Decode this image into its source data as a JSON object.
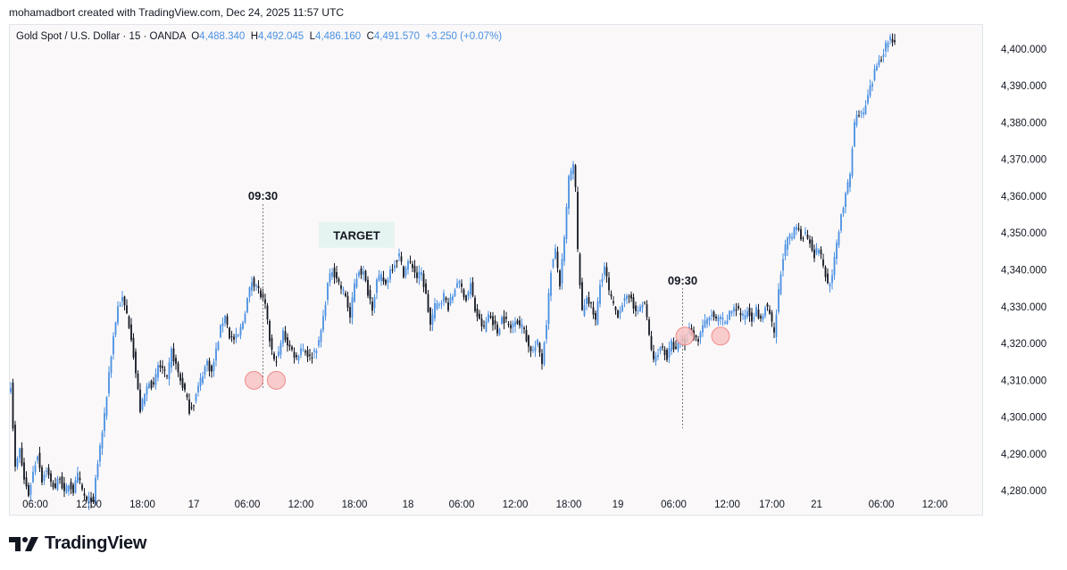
{
  "header": {
    "credit": "mohamadbort created with TradingView.com, Dec 24, 2025 11:57 UTC"
  },
  "legend": {
    "symbol": "Gold Spot / U.S. Dollar · 15 · OANDA",
    "o_label": "O",
    "o_value": "4,488.340",
    "h_label": "H",
    "h_value": "4,492.045",
    "l_label": "L",
    "l_value": "4,486.160",
    "c_label": "C",
    "c_value": "4,491.570",
    "change": "+3.250 (+0.07%)"
  },
  "footer": {
    "brand": "TradingView"
  },
  "colors": {
    "up": "#4a90e2",
    "down": "#131722",
    "marker_fill": "#f7c4c4",
    "marker_stroke": "#ef8a8a",
    "target_bg": "#e6f4f1"
  },
  "chart_data": {
    "type": "candlestick",
    "ylim": [
      4273.5,
      4406.5
    ],
    "y_ticks": [
      4280,
      4290,
      4300,
      4310,
      4320,
      4330,
      4340,
      4350,
      4360,
      4370,
      4380,
      4390,
      4400
    ],
    "y_tick_labels": [
      "4,280.000",
      "4,290.000",
      "4,300.000",
      "4,310.000",
      "4,320.000",
      "4,330.000",
      "4,340.000",
      "4,350.000",
      "4,360.000",
      "4,370.000",
      "4,380.000",
      "4,390.000",
      "4,400.000"
    ],
    "x_ticks": [
      {
        "label": "06:00",
        "bar": 11
      },
      {
        "label": "12:00",
        "bar": 35
      },
      {
        "label": "18:00",
        "bar": 59
      },
      {
        "label": "17",
        "bar": 82
      },
      {
        "label": "06:00",
        "bar": 106
      },
      {
        "label": "12:00",
        "bar": 130
      },
      {
        "label": "18:00",
        "bar": 154
      },
      {
        "label": "18",
        "bar": 178
      },
      {
        "label": "06:00",
        "bar": 202
      },
      {
        "label": "12:00",
        "bar": 226
      },
      {
        "label": "18:00",
        "bar": 250
      },
      {
        "label": "19",
        "bar": 272
      },
      {
        "label": "06:00",
        "bar": 297
      },
      {
        "label": "12:00",
        "bar": 321
      },
      {
        "label": "17:00",
        "bar": 341
      },
      {
        "label": "21",
        "bar": 361
      },
      {
        "label": "06:00",
        "bar": 390
      },
      {
        "label": "12:00",
        "bar": 414
      }
    ],
    "anchors": [
      [
        0,
        4309
      ],
      [
        2,
        4286
      ],
      [
        4,
        4291
      ],
      [
        6,
        4283
      ],
      [
        8,
        4279
      ],
      [
        10,
        4285
      ],
      [
        12,
        4290
      ],
      [
        14,
        4283
      ],
      [
        16,
        4286
      ],
      [
        18,
        4282
      ],
      [
        20,
        4281
      ],
      [
        22,
        4284
      ],
      [
        24,
        4279
      ],
      [
        26,
        4282
      ],
      [
        28,
        4280
      ],
      [
        30,
        4284
      ],
      [
        32,
        4280
      ],
      [
        34,
        4277
      ],
      [
        36,
        4278
      ],
      [
        37,
        4276
      ],
      [
        38,
        4283
      ],
      [
        40,
        4292
      ],
      [
        42,
        4300
      ],
      [
        44,
        4312
      ],
      [
        46,
        4322
      ],
      [
        48,
        4330
      ],
      [
        50,
        4332
      ],
      [
        52,
        4328
      ],
      [
        54,
        4322
      ],
      [
        56,
        4312
      ],
      [
        58,
        4302
      ],
      [
        60,
        4306
      ],
      [
        62,
        4310
      ],
      [
        64,
        4308
      ],
      [
        66,
        4314
      ],
      [
        68,
        4313
      ],
      [
        70,
        4310
      ],
      [
        72,
        4318
      ],
      [
        74,
        4314
      ],
      [
        76,
        4310
      ],
      [
        78,
        4307
      ],
      [
        80,
        4302
      ],
      [
        82,
        4304
      ],
      [
        84,
        4308
      ],
      [
        86,
        4312
      ],
      [
        88,
        4315
      ],
      [
        90,
        4312
      ],
      [
        92,
        4318
      ],
      [
        94,
        4324
      ],
      [
        96,
        4328
      ],
      [
        98,
        4322
      ],
      [
        100,
        4321
      ],
      [
        102,
        4322
      ],
      [
        104,
        4326
      ],
      [
        106,
        4332
      ],
      [
        108,
        4337
      ],
      [
        110,
        4336
      ],
      [
        112,
        4333
      ],
      [
        114,
        4330
      ],
      [
        116,
        4321
      ],
      [
        118,
        4315
      ],
      [
        120,
        4317
      ],
      [
        122,
        4323
      ],
      [
        124,
        4320
      ],
      [
        126,
        4318
      ],
      [
        128,
        4316
      ],
      [
        130,
        4319
      ],
      [
        132,
        4318
      ],
      [
        134,
        4316
      ],
      [
        136,
        4318
      ],
      [
        138,
        4320
      ],
      [
        140,
        4327
      ],
      [
        142,
        4336
      ],
      [
        144,
        4340
      ],
      [
        146,
        4338
      ],
      [
        148,
        4335
      ],
      [
        150,
        4333
      ],
      [
        152,
        4327
      ],
      [
        154,
        4336
      ],
      [
        156,
        4340
      ],
      [
        158,
        4339
      ],
      [
        160,
        4334
      ],
      [
        162,
        4330
      ],
      [
        164,
        4337
      ],
      [
        166,
        4338
      ],
      [
        168,
        4336
      ],
      [
        170,
        4340
      ],
      [
        172,
        4342
      ],
      [
        174,
        4344
      ],
      [
        176,
        4339
      ],
      [
        178,
        4342
      ],
      [
        180,
        4341
      ],
      [
        182,
        4338
      ],
      [
        184,
        4339
      ],
      [
        186,
        4333
      ],
      [
        188,
        4325
      ],
      [
        190,
        4330
      ],
      [
        192,
        4331
      ],
      [
        194,
        4333
      ],
      [
        196,
        4330
      ],
      [
        198,
        4333
      ],
      [
        200,
        4337
      ],
      [
        202,
        4335
      ],
      [
        204,
        4332
      ],
      [
        206,
        4336
      ],
      [
        208,
        4329
      ],
      [
        210,
        4326
      ],
      [
        212,
        4324
      ],
      [
        214,
        4328
      ],
      [
        216,
        4326
      ],
      [
        218,
        4323
      ],
      [
        220,
        4327
      ],
      [
        222,
        4326
      ],
      [
        224,
        4324
      ],
      [
        226,
        4327
      ],
      [
        228,
        4325
      ],
      [
        230,
        4324
      ],
      [
        232,
        4319
      ],
      [
        234,
        4318
      ],
      [
        236,
        4320
      ],
      [
        238,
        4315
      ],
      [
        240,
        4326
      ],
      [
        242,
        4340
      ],
      [
        244,
        4345
      ],
      [
        246,
        4336
      ],
      [
        248,
        4348
      ],
      [
        250,
        4365
      ],
      [
        252,
        4368
      ],
      [
        253,
        4362
      ],
      [
        254,
        4345
      ],
      [
        256,
        4328
      ],
      [
        258,
        4333
      ],
      [
        260,
        4330
      ],
      [
        262,
        4326
      ],
      [
        264,
        4336
      ],
      [
        266,
        4341
      ],
      [
        268,
        4334
      ],
      [
        270,
        4330
      ],
      [
        272,
        4328
      ],
      [
        274,
        4331
      ],
      [
        276,
        4332
      ],
      [
        278,
        4333
      ],
      [
        280,
        4328
      ],
      [
        282,
        4330
      ],
      [
        284,
        4331
      ],
      [
        286,
        4322
      ],
      [
        288,
        4315
      ],
      [
        290,
        4318
      ],
      [
        292,
        4319
      ],
      [
        294,
        4316
      ],
      [
        296,
        4320
      ],
      [
        298,
        4318
      ],
      [
        300,
        4321
      ],
      [
        302,
        4320
      ],
      [
        304,
        4324
      ],
      [
        306,
        4322
      ],
      [
        308,
        4321
      ],
      [
        310,
        4325
      ],
      [
        312,
        4326
      ],
      [
        314,
        4328
      ],
      [
        316,
        4326
      ],
      [
        318,
        4327
      ],
      [
        320,
        4325
      ],
      [
        322,
        4328
      ],
      [
        324,
        4330
      ],
      [
        326,
        4329
      ],
      [
        328,
        4327
      ],
      [
        330,
        4329
      ],
      [
        332,
        4327
      ],
      [
        334,
        4329
      ],
      [
        336,
        4326
      ],
      [
        338,
        4330
      ],
      [
        340,
        4328
      ],
      [
        342,
        4322
      ],
      [
        344,
        4334
      ],
      [
        346,
        4344
      ],
      [
        348,
        4348
      ],
      [
        350,
        4349
      ],
      [
        352,
        4352
      ],
      [
        354,
        4349
      ],
      [
        356,
        4350
      ],
      [
        358,
        4348
      ],
      [
        360,
        4344
      ],
      [
        362,
        4346
      ],
      [
        364,
        4341
      ],
      [
        366,
        4336
      ],
      [
        368,
        4338
      ],
      [
        370,
        4347
      ],
      [
        372,
        4355
      ],
      [
        374,
        4360
      ],
      [
        376,
        4366
      ],
      [
        378,
        4380
      ],
      [
        380,
        4383
      ],
      [
        382,
        4382
      ],
      [
        384,
        4387
      ],
      [
        386,
        4391
      ],
      [
        388,
        4396
      ],
      [
        390,
        4398
      ],
      [
        392,
        4401
      ],
      [
        394,
        4403
      ],
      [
        396,
        4402
      ]
    ],
    "n_bars": 397,
    "annotations": [
      {
        "type": "vline",
        "label": "09:30",
        "bar": 113,
        "from": 4308,
        "to": 4358,
        "style": "dotted"
      },
      {
        "type": "vline",
        "label": "09:30",
        "bar": 301,
        "from": 4335,
        "to": 4297,
        "style": "dotted"
      },
      {
        "type": "label-box",
        "label": "TARGET",
        "bar_from": 138,
        "bar_to": 172,
        "price_top": 4353,
        "price_bottom": 4346
      },
      {
        "type": "circle",
        "bar": 109,
        "price": 4310
      },
      {
        "type": "circle",
        "bar": 119,
        "price": 4310
      },
      {
        "type": "circle",
        "bar": 302,
        "price": 4322
      },
      {
        "type": "circle",
        "bar": 318,
        "price": 4322
      }
    ]
  }
}
